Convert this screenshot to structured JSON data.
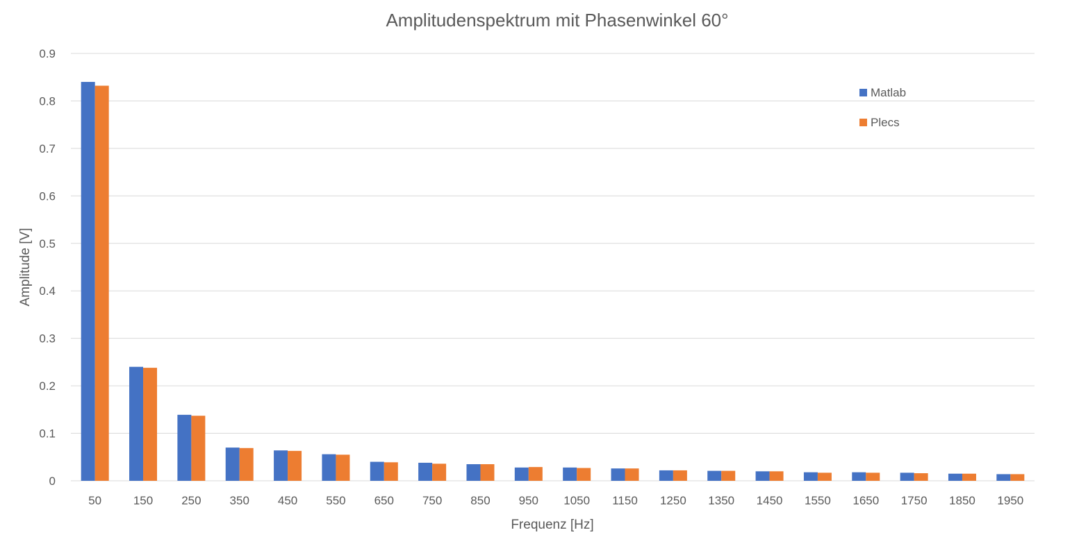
{
  "chart_data": {
    "type": "bar",
    "title": "Amplitudenspektrum mit Phasenwinkel 60°",
    "xlabel": "Frequenz [Hz]",
    "ylabel": "Amplitude [V]",
    "ylim": [
      0,
      0.9
    ],
    "yticks": [
      "0",
      "0.1",
      "0.2",
      "0.3",
      "0.4",
      "0.5",
      "0.6",
      "0.7",
      "0.8",
      "0.9"
    ],
    "grid": true,
    "legend_position": "top-right",
    "categories": [
      "50",
      "150",
      "250",
      "350",
      "450",
      "550",
      "650",
      "750",
      "850",
      "950",
      "1050",
      "1150",
      "1250",
      "1350",
      "1450",
      "1550",
      "1650",
      "1750",
      "1850",
      "1950"
    ],
    "series": [
      {
        "name": "Matlab",
        "color": "#4472c4",
        "values": [
          0.84,
          0.24,
          0.139,
          0.07,
          0.064,
          0.056,
          0.04,
          0.038,
          0.035,
          0.028,
          0.028,
          0.026,
          0.022,
          0.021,
          0.02,
          0.018,
          0.018,
          0.017,
          0.015,
          0.014
        ]
      },
      {
        "name": "Plecs",
        "color": "#ed7d31",
        "values": [
          0.832,
          0.238,
          0.137,
          0.069,
          0.063,
          0.055,
          0.039,
          0.036,
          0.035,
          0.029,
          0.027,
          0.026,
          0.022,
          0.021,
          0.02,
          0.017,
          0.017,
          0.016,
          0.015,
          0.014
        ]
      }
    ]
  }
}
